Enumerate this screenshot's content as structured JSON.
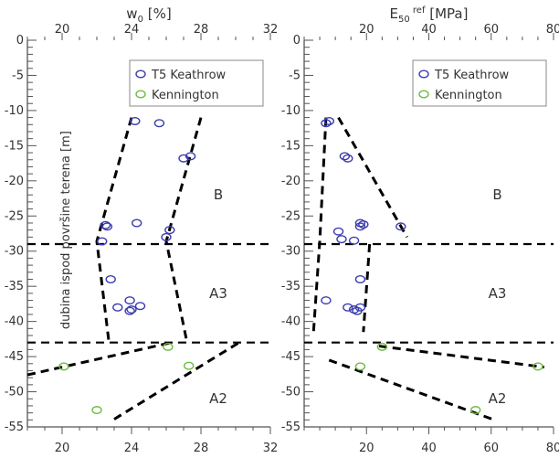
{
  "chart_data": [
    {
      "type": "scatter",
      "title": "w_0 [%]",
      "title_main": "w",
      "title_sub": "0",
      "title_unit": "[%]",
      "ylabel": "dubina ispod površine terena [m]",
      "xlim": [
        18,
        32
      ],
      "ylim": [
        -55,
        0
      ],
      "xticks": [
        20,
        24,
        28,
        32
      ],
      "xminor": 1,
      "yticks": [
        0,
        -5,
        -10,
        -15,
        -20,
        -25,
        -30,
        -35,
        -40,
        -45,
        -50,
        -55
      ],
      "yminor": 1,
      "grid": false,
      "legend_position": "top-right",
      "series": [
        {
          "name": "T5 Keathrow",
          "color": "#3b3bb0",
          "x": [
            24.2,
            25.6,
            27.0,
            27.4,
            26.2,
            26.0,
            24.3,
            22.6,
            22.5,
            22.3,
            22.8,
            23.9,
            24.0,
            24.5,
            23.2,
            23.9
          ],
          "y": [
            -11.5,
            -11.8,
            -16.8,
            -16.5,
            -27.0,
            -28.0,
            -26.0,
            -26.5,
            -26.3,
            -28.6,
            -34.0,
            -37.0,
            -38.3,
            -37.8,
            -38.0,
            -38.5
          ]
        },
        {
          "name": "Kennington",
          "color": "#6abd3e",
          "x": [
            26.1,
            20.1,
            27.3,
            22.0
          ],
          "y": [
            -43.6,
            -46.4,
            -46.3,
            -52.6
          ]
        }
      ],
      "trend_lines": [
        {
          "x": [
            24.0,
            22.0,
            22.7
          ],
          "y": [
            -11,
            -28.6,
            -43
          ]
        },
        {
          "x": [
            28.0,
            26.0,
            27.2
          ],
          "y": [
            -11,
            -28.6,
            -43
          ]
        },
        {
          "x": [
            18.0,
            26.3
          ],
          "y": [
            -47.6,
            -43
          ]
        },
        {
          "x": [
            23.0,
            30.2
          ],
          "y": [
            -53.9,
            -43
          ]
        }
      ],
      "reference_lines_y": [
        -29,
        -43
      ],
      "zone_labels": [
        {
          "text": "B",
          "x": 29.0,
          "y": -22
        },
        {
          "text": "A3",
          "x": 29.0,
          "y": -36
        },
        {
          "text": "A2",
          "x": 29.0,
          "y": -51
        }
      ]
    },
    {
      "type": "scatter",
      "title": "E_50^ref [MPa]",
      "title_main": "E",
      "title_sub": "50",
      "title_sup": "ref",
      "title_unit": "[MPa]",
      "ylabel": "",
      "xlim": [
        0,
        80
      ],
      "ylim": [
        -55,
        0
      ],
      "xticks": [
        20,
        40,
        60,
        80
      ],
      "xminor": 5,
      "yticks": [
        0,
        -5,
        -10,
        -15,
        -20,
        -25,
        -30,
        -35,
        -40,
        -45,
        -50,
        -55
      ],
      "yminor": 1,
      "grid": false,
      "legend_position": "top-right",
      "series": [
        {
          "name": "T5 Keathrow",
          "color": "#3b3bb0",
          "x": [
            7.0,
            8.0,
            13.0,
            14.0,
            18.0,
            19.0,
            11.0,
            12.0,
            18.0,
            31.0,
            16.0,
            18.0,
            7.0,
            14.0,
            16.0,
            17.0,
            18.0
          ],
          "y": [
            -11.8,
            -11.5,
            -16.5,
            -16.8,
            -26.0,
            -26.2,
            -27.2,
            -28.3,
            -26.5,
            -26.5,
            -28.5,
            -34.0,
            -37.0,
            -38.0,
            -38.3,
            -38.5,
            -38.0
          ]
        },
        {
          "name": "Kennington",
          "color": "#6abd3e",
          "x": [
            25.0,
            18.0,
            55.0,
            75.0
          ],
          "y": [
            -43.6,
            -46.4,
            -52.6,
            -46.4
          ]
        }
      ],
      "trend_lines": [
        {
          "x": [
            7.0,
            5.0,
            3.0
          ],
          "y": [
            -11,
            -28.6,
            -41.5
          ]
        },
        {
          "x": [
            11.0,
            33.0
          ],
          "y": [
            -11,
            -28
          ]
        },
        {
          "x": [
            21.0,
            19.0
          ],
          "y": [
            -29,
            -41.5
          ]
        },
        {
          "x": [
            24.0,
            77.0
          ],
          "y": [
            -43.5,
            -46.5
          ]
        },
        {
          "x": [
            8.0,
            61.0
          ],
          "y": [
            -45.5,
            -54
          ]
        }
      ],
      "reference_lines_y": [
        -29,
        -43
      ],
      "zone_labels": [
        {
          "text": "B",
          "x": 62.0,
          "y": -22
        },
        {
          "text": "A3",
          "x": 62.0,
          "y": -36
        },
        {
          "text": "A2",
          "x": 62.0,
          "y": -51
        }
      ]
    }
  ]
}
